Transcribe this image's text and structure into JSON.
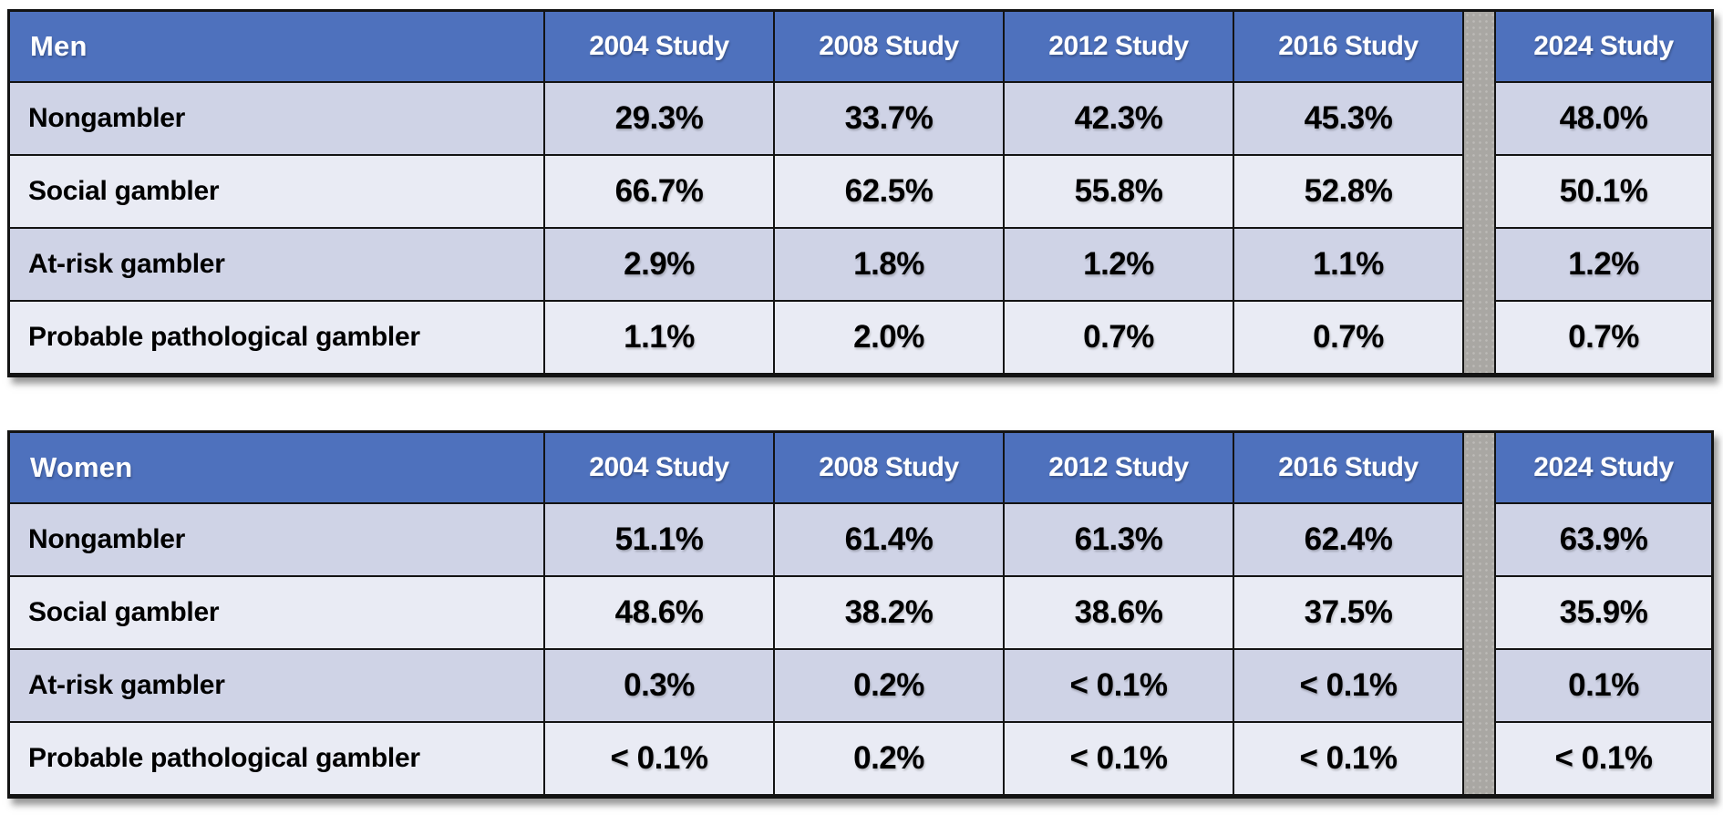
{
  "colors": {
    "header_blue": "#4E71BD",
    "header_text": "#FFFFFF",
    "row_dark": "#CFD3E6",
    "row_light": "#E9EBF4",
    "separator_gray": "#A9A7A3",
    "border_black": "#131313"
  },
  "chart_data": [
    {
      "type": "table",
      "title": "Men",
      "columns": [
        "2004 Study",
        "2008 Study",
        "2012 Study",
        "2016 Study",
        "2024 Study"
      ],
      "rows": [
        {
          "label": "Nongambler",
          "values": [
            "29.3%",
            "33.7%",
            "42.3%",
            "45.3%",
            "48.0%"
          ]
        },
        {
          "label": "Social gambler",
          "values": [
            "66.7%",
            "62.5%",
            "55.8%",
            "52.8%",
            "50.1%"
          ]
        },
        {
          "label": "At-risk gambler",
          "values": [
            "2.9%",
            "1.8%",
            "1.2%",
            "1.1%",
            "1.2%"
          ]
        },
        {
          "label": "Probable pathological gambler",
          "values": [
            "1.1%",
            "2.0%",
            "0.7%",
            "0.7%",
            "0.7%"
          ]
        }
      ],
      "layout_hints": {
        "separator_between": [
          "2016 Study",
          "2024 Study"
        ]
      }
    },
    {
      "type": "table",
      "title": "Women",
      "columns": [
        "2004 Study",
        "2008 Study",
        "2012 Study",
        "2016 Study",
        "2024 Study"
      ],
      "rows": [
        {
          "label": "Nongambler",
          "values": [
            "51.1%",
            "61.4%",
            "61.3%",
            "62.4%",
            "63.9%"
          ]
        },
        {
          "label": "Social gambler",
          "values": [
            "48.6%",
            "38.2%",
            "38.6%",
            "37.5%",
            "35.9%"
          ]
        },
        {
          "label": "At-risk gambler",
          "values": [
            "0.3%",
            "0.2%",
            "< 0.1%",
            "< 0.1%",
            "0.1%"
          ]
        },
        {
          "label": "Probable pathological gambler",
          "values": [
            "< 0.1%",
            "0.2%",
            "< 0.1%",
            "< 0.1%",
            "< 0.1%"
          ]
        }
      ],
      "layout_hints": {
        "separator_between": [
          "2016 Study",
          "2024 Study"
        ]
      }
    }
  ]
}
